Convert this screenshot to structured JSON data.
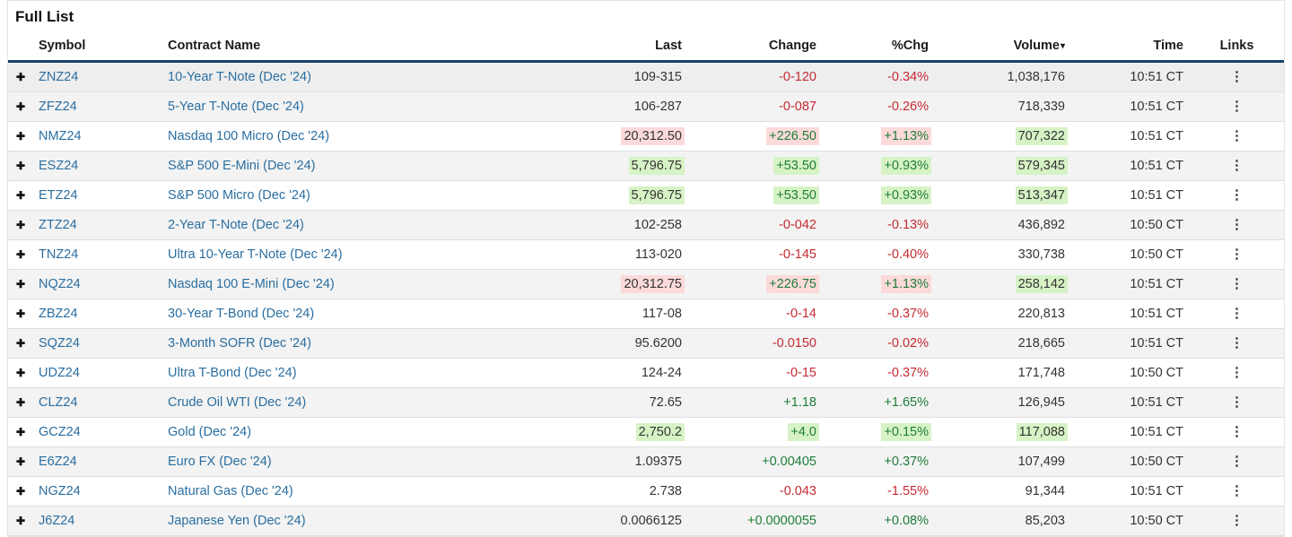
{
  "header": {
    "title": "Full List"
  },
  "icons": {
    "add": "✚",
    "row_menu": "⋮",
    "sort_desc": "▾"
  },
  "colors": {
    "link": "#2a6ea0",
    "up_text": "#1e7d39",
    "down_text": "#c62a32",
    "flash_up_bg": "#d7f3c6",
    "flash_down_bg": "#fcdada",
    "header_underline": "#17406e",
    "row_stripe": "#f3f3f3"
  },
  "table": {
    "columns": {
      "symbol": "Symbol",
      "name": "Contract Name",
      "last": "Last",
      "change": "Change",
      "pchg": "%Chg",
      "volume": "Volume",
      "time": "Time",
      "links": "Links"
    },
    "sort": {
      "column": "volume",
      "direction": "desc"
    },
    "rows": [
      {
        "symbol": "ZNZ24",
        "name": "10-Year T-Note (Dec '24)",
        "last": "109-315",
        "change": "-0-120",
        "pchg": "-0.34%",
        "volume": "1,038,176",
        "time": "10:51 CT",
        "dir": "down",
        "flash": null,
        "vol_flash": false
      },
      {
        "symbol": "ZFZ24",
        "name": "5-Year T-Note (Dec '24)",
        "last": "106-287",
        "change": "-0-087",
        "pchg": "-0.26%",
        "volume": "718,339",
        "time": "10:51 CT",
        "dir": "down",
        "flash": null,
        "vol_flash": false
      },
      {
        "symbol": "NMZ24",
        "name": "Nasdaq 100 Micro (Dec '24)",
        "last": "20,312.50",
        "change": "+226.50",
        "pchg": "+1.13%",
        "volume": "707,322",
        "time": "10:51 CT",
        "dir": "up",
        "flash": "down",
        "vol_flash": true
      },
      {
        "symbol": "ESZ24",
        "name": "S&P 500 E-Mini (Dec '24)",
        "last": "5,796.75",
        "change": "+53.50",
        "pchg": "+0.93%",
        "volume": "579,345",
        "time": "10:51 CT",
        "dir": "up",
        "flash": "up",
        "vol_flash": true
      },
      {
        "symbol": "ETZ24",
        "name": "S&P 500 Micro (Dec '24)",
        "last": "5,796.75",
        "change": "+53.50",
        "pchg": "+0.93%",
        "volume": "513,347",
        "time": "10:51 CT",
        "dir": "up",
        "flash": "up",
        "vol_flash": true
      },
      {
        "symbol": "ZTZ24",
        "name": "2-Year T-Note (Dec '24)",
        "last": "102-258",
        "change": "-0-042",
        "pchg": "-0.13%",
        "volume": "436,892",
        "time": "10:50 CT",
        "dir": "down",
        "flash": null,
        "vol_flash": false
      },
      {
        "symbol": "TNZ24",
        "name": "Ultra 10-Year T-Note (Dec '24)",
        "last": "113-020",
        "change": "-0-145",
        "pchg": "-0.40%",
        "volume": "330,738",
        "time": "10:50 CT",
        "dir": "down",
        "flash": null,
        "vol_flash": false
      },
      {
        "symbol": "NQZ24",
        "name": "Nasdaq 100 E-Mini (Dec '24)",
        "last": "20,312.75",
        "change": "+226.75",
        "pchg": "+1.13%",
        "volume": "258,142",
        "time": "10:51 CT",
        "dir": "up",
        "flash": "down",
        "vol_flash": true
      },
      {
        "symbol": "ZBZ24",
        "name": "30-Year T-Bond (Dec '24)",
        "last": "117-08",
        "change": "-0-14",
        "pchg": "-0.37%",
        "volume": "220,813",
        "time": "10:51 CT",
        "dir": "down",
        "flash": null,
        "vol_flash": false
      },
      {
        "symbol": "SQZ24",
        "name": "3-Month SOFR (Dec '24)",
        "last": "95.6200",
        "change": "-0.0150",
        "pchg": "-0.02%",
        "volume": "218,665",
        "time": "10:51 CT",
        "dir": "down",
        "flash": null,
        "vol_flash": false
      },
      {
        "symbol": "UDZ24",
        "name": "Ultra T-Bond (Dec '24)",
        "last": "124-24",
        "change": "-0-15",
        "pchg": "-0.37%",
        "volume": "171,748",
        "time": "10:50 CT",
        "dir": "down",
        "flash": null,
        "vol_flash": false
      },
      {
        "symbol": "CLZ24",
        "name": "Crude Oil WTI (Dec '24)",
        "last": "72.65",
        "change": "+1.18",
        "pchg": "+1.65%",
        "volume": "126,945",
        "time": "10:51 CT",
        "dir": "up",
        "flash": null,
        "vol_flash": false
      },
      {
        "symbol": "GCZ24",
        "name": "Gold (Dec '24)",
        "last": "2,750.2",
        "change": "+4.0",
        "pchg": "+0.15%",
        "volume": "117,088",
        "time": "10:51 CT",
        "dir": "up",
        "flash": "up",
        "vol_flash": true
      },
      {
        "symbol": "E6Z24",
        "name": "Euro FX (Dec '24)",
        "last": "1.09375",
        "change": "+0.00405",
        "pchg": "+0.37%",
        "volume": "107,499",
        "time": "10:50 CT",
        "dir": "up",
        "flash": null,
        "vol_flash": false
      },
      {
        "symbol": "NGZ24",
        "name": "Natural Gas (Dec '24)",
        "last": "2.738",
        "change": "-0.043",
        "pchg": "-1.55%",
        "volume": "91,344",
        "time": "10:51 CT",
        "dir": "down",
        "flash": null,
        "vol_flash": false
      },
      {
        "symbol": "J6Z24",
        "name": "Japanese Yen (Dec '24)",
        "last": "0.0066125",
        "change": "+0.0000055",
        "pchg": "+0.08%",
        "volume": "85,203",
        "time": "10:50 CT",
        "dir": "up",
        "flash": null,
        "vol_flash": false
      }
    ]
  }
}
